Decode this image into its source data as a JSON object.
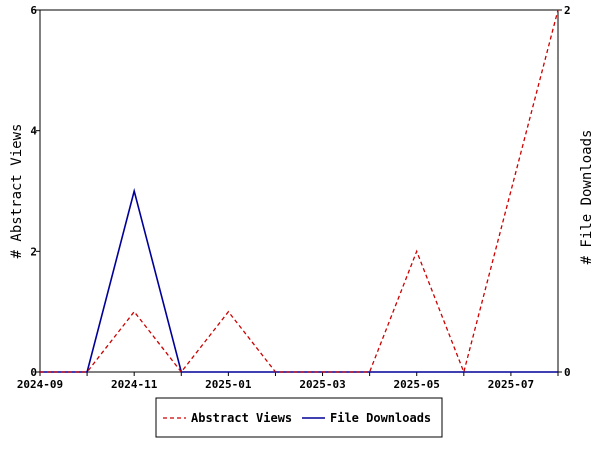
{
  "chart_data": {
    "type": "line",
    "x": [
      "2024-09",
      "2024-10",
      "2024-11",
      "2024-12",
      "2025-01",
      "2025-02",
      "2025-03",
      "2025-04",
      "2025-05",
      "2025-06",
      "2025-07",
      "2025-08"
    ],
    "xtick_labels": [
      "2024-09",
      "2024-11",
      "2025-01",
      "2025-03",
      "2025-05",
      "2025-07"
    ],
    "xlabel": "",
    "ylabel": "# Abstract Views",
    "y2label": "# File Downloads",
    "ylim": [
      0,
      6
    ],
    "y2lim": [
      0,
      2
    ],
    "yticks": [
      0,
      2,
      4,
      6
    ],
    "y2ticks": [
      0,
      2
    ],
    "grid": false,
    "legend_placement": "bottom-center",
    "series": [
      {
        "name": "Abstract Views",
        "axis": "left",
        "style": "dashed",
        "color": "#cc0000",
        "values": [
          0,
          0,
          1,
          0,
          1,
          0,
          0,
          0,
          2,
          0,
          3,
          6
        ]
      },
      {
        "name": "File Downloads",
        "axis": "right",
        "style": "solid",
        "color": "#000099",
        "values": [
          0,
          0,
          1,
          0,
          0,
          0,
          0,
          0,
          0,
          0,
          0,
          0
        ]
      }
    ]
  }
}
